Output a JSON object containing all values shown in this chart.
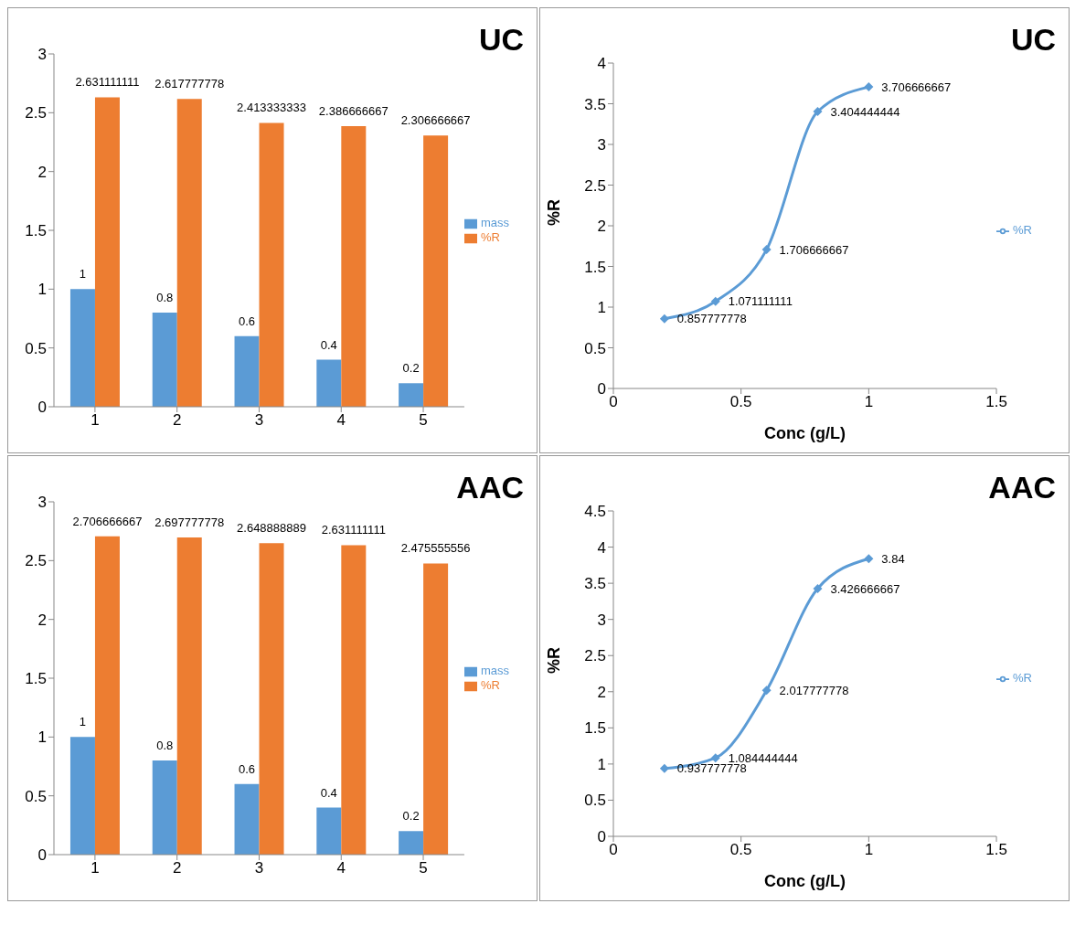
{
  "chart_data": [
    {
      "type": "bar",
      "title": "UC",
      "categories": [
        "1",
        "2",
        "3",
        "4",
        "5"
      ],
      "series": [
        {
          "name": "mass",
          "color": "#5b9bd5",
          "values": [
            1,
            0.8,
            0.6,
            0.4,
            0.2
          ]
        },
        {
          "name": "%R",
          "color": "#ed7d31",
          "values": [
            2.631111111,
            2.617777778,
            2.413333333,
            2.386666667,
            2.306666667
          ]
        }
      ],
      "ylim": [
        0,
        3
      ],
      "yticks": [
        0,
        0.5,
        1,
        1.5,
        2,
        2.5,
        3
      ],
      "grid": false,
      "legend": "right",
      "data_labels": true
    },
    {
      "type": "line",
      "title": "UC",
      "xlabel": "Conc (g/L)",
      "ylabel": "%R",
      "x": [
        0.2,
        0.4,
        0.6,
        0.8,
        1
      ],
      "series": [
        {
          "name": "%R",
          "color": "#5b9bd5",
          "values": [
            0.857777778,
            1.071111111,
            1.706666667,
            3.404444444,
            3.706666667
          ]
        }
      ],
      "xlim": [
        0,
        1.5
      ],
      "xticks": [
        0,
        0.5,
        1,
        1.5
      ],
      "ylim": [
        0,
        4
      ],
      "yticks": [
        0,
        0.5,
        1,
        1.5,
        2,
        2.5,
        3,
        3.5,
        4
      ],
      "grid": false,
      "legend": "right",
      "marker": "diamond",
      "line_style": "solid",
      "data_labels": true
    },
    {
      "type": "bar",
      "title": "AAC",
      "categories": [
        "1",
        "2",
        "3",
        "4",
        "5"
      ],
      "series": [
        {
          "name": "mass",
          "color": "#5b9bd5",
          "values": [
            1,
            0.8,
            0.6,
            0.4,
            0.2
          ]
        },
        {
          "name": "%R",
          "color": "#ed7d31",
          "values": [
            2.706666667,
            2.697777778,
            2.648888889,
            2.631111111,
            2.475555556
          ]
        }
      ],
      "ylim": [
        0,
        3
      ],
      "yticks": [
        0,
        0.5,
        1,
        1.5,
        2,
        2.5,
        3
      ],
      "grid": false,
      "legend": "right",
      "data_labels": true
    },
    {
      "type": "line",
      "title": "AAC",
      "xlabel": "Conc (g/L)",
      "ylabel": "%R",
      "x": [
        0.2,
        0.4,
        0.6,
        0.8,
        1
      ],
      "series": [
        {
          "name": "%R",
          "color": "#5b9bd5",
          "values": [
            0.937777778,
            1.084444444,
            2.017777778,
            3.426666667,
            3.84
          ]
        }
      ],
      "xlim": [
        0,
        1.5
      ],
      "xticks": [
        0,
        0.5,
        1,
        1.5
      ],
      "ylim": [
        0,
        4.5
      ],
      "yticks": [
        0,
        0.5,
        1,
        1.5,
        2,
        2.5,
        3,
        3.5,
        4,
        4.5
      ],
      "grid": false,
      "legend": "right",
      "marker": "diamond",
      "line_style": "solid",
      "data_labels": true
    }
  ]
}
